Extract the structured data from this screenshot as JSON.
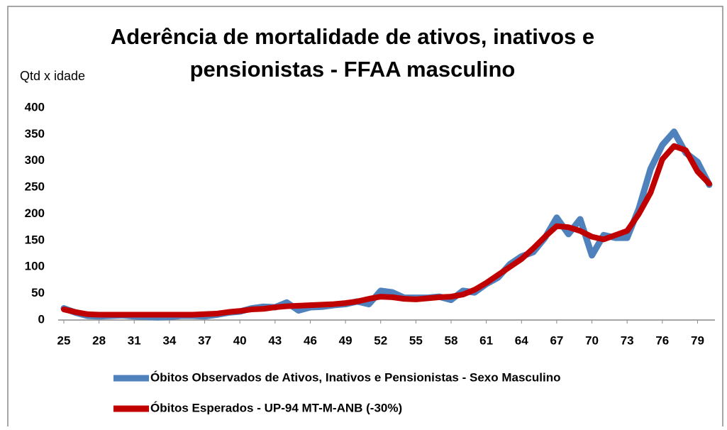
{
  "chart_data": {
    "type": "line",
    "title": [
      "Aderência de mortalidade de ativos, inativos e",
      "pensionistas - FFAA masculino"
    ],
    "y_label": "Qtd x idade",
    "x": [
      25,
      26,
      27,
      28,
      29,
      30,
      31,
      32,
      33,
      34,
      35,
      36,
      37,
      38,
      39,
      40,
      41,
      42,
      43,
      44,
      45,
      46,
      47,
      48,
      49,
      50,
      51,
      52,
      53,
      54,
      55,
      56,
      57,
      58,
      59,
      60,
      61,
      62,
      63,
      64,
      65,
      66,
      67,
      68,
      69,
      70,
      71,
      72,
      73,
      74,
      75,
      76,
      77,
      78,
      79,
      80
    ],
    "series": [
      {
        "name": "Óbitos Observados de Ativos, Inativos e Pensionistas - Sexo Masculino",
        "color": "#4f81bd",
        "values": [
          22,
          14,
          8,
          7,
          8,
          9,
          7,
          6,
          5,
          6,
          8,
          8,
          7,
          10,
          14,
          16,
          22,
          25,
          24,
          33,
          18,
          24,
          25,
          28,
          30,
          35,
          30,
          55,
          52,
          42,
          42,
          42,
          44,
          38,
          55,
          52,
          68,
          80,
          105,
          120,
          128,
          155,
          193,
          162,
          190,
          122,
          160,
          155,
          155,
          210,
          285,
          330,
          355,
          315,
          298,
          255
        ]
      },
      {
        "name": "Óbitos Esperados -  UP-94 MT-M-ANB (-30%)",
        "color": "#c00000",
        "values": [
          20,
          15,
          11,
          10,
          10,
          10,
          10,
          10,
          10,
          10,
          10,
          10,
          11,
          12,
          15,
          17,
          20,
          21,
          24,
          26,
          27,
          28,
          29,
          30,
          32,
          35,
          40,
          44,
          43,
          40,
          39,
          41,
          43,
          44,
          48,
          57,
          70,
          85,
          100,
          115,
          135,
          157,
          177,
          175,
          168,
          157,
          152,
          160,
          168,
          200,
          240,
          303,
          328,
          320,
          280,
          257
        ]
      }
    ],
    "xlim": [
      25,
      80
    ],
    "xticks": [
      25,
      28,
      31,
      34,
      37,
      40,
      43,
      46,
      49,
      52,
      55,
      58,
      61,
      64,
      67,
      70,
      73,
      76,
      79
    ],
    "ylim": [
      0,
      400
    ],
    "yticks": [
      0,
      50,
      100,
      150,
      200,
      250,
      300,
      350,
      400
    ]
  }
}
